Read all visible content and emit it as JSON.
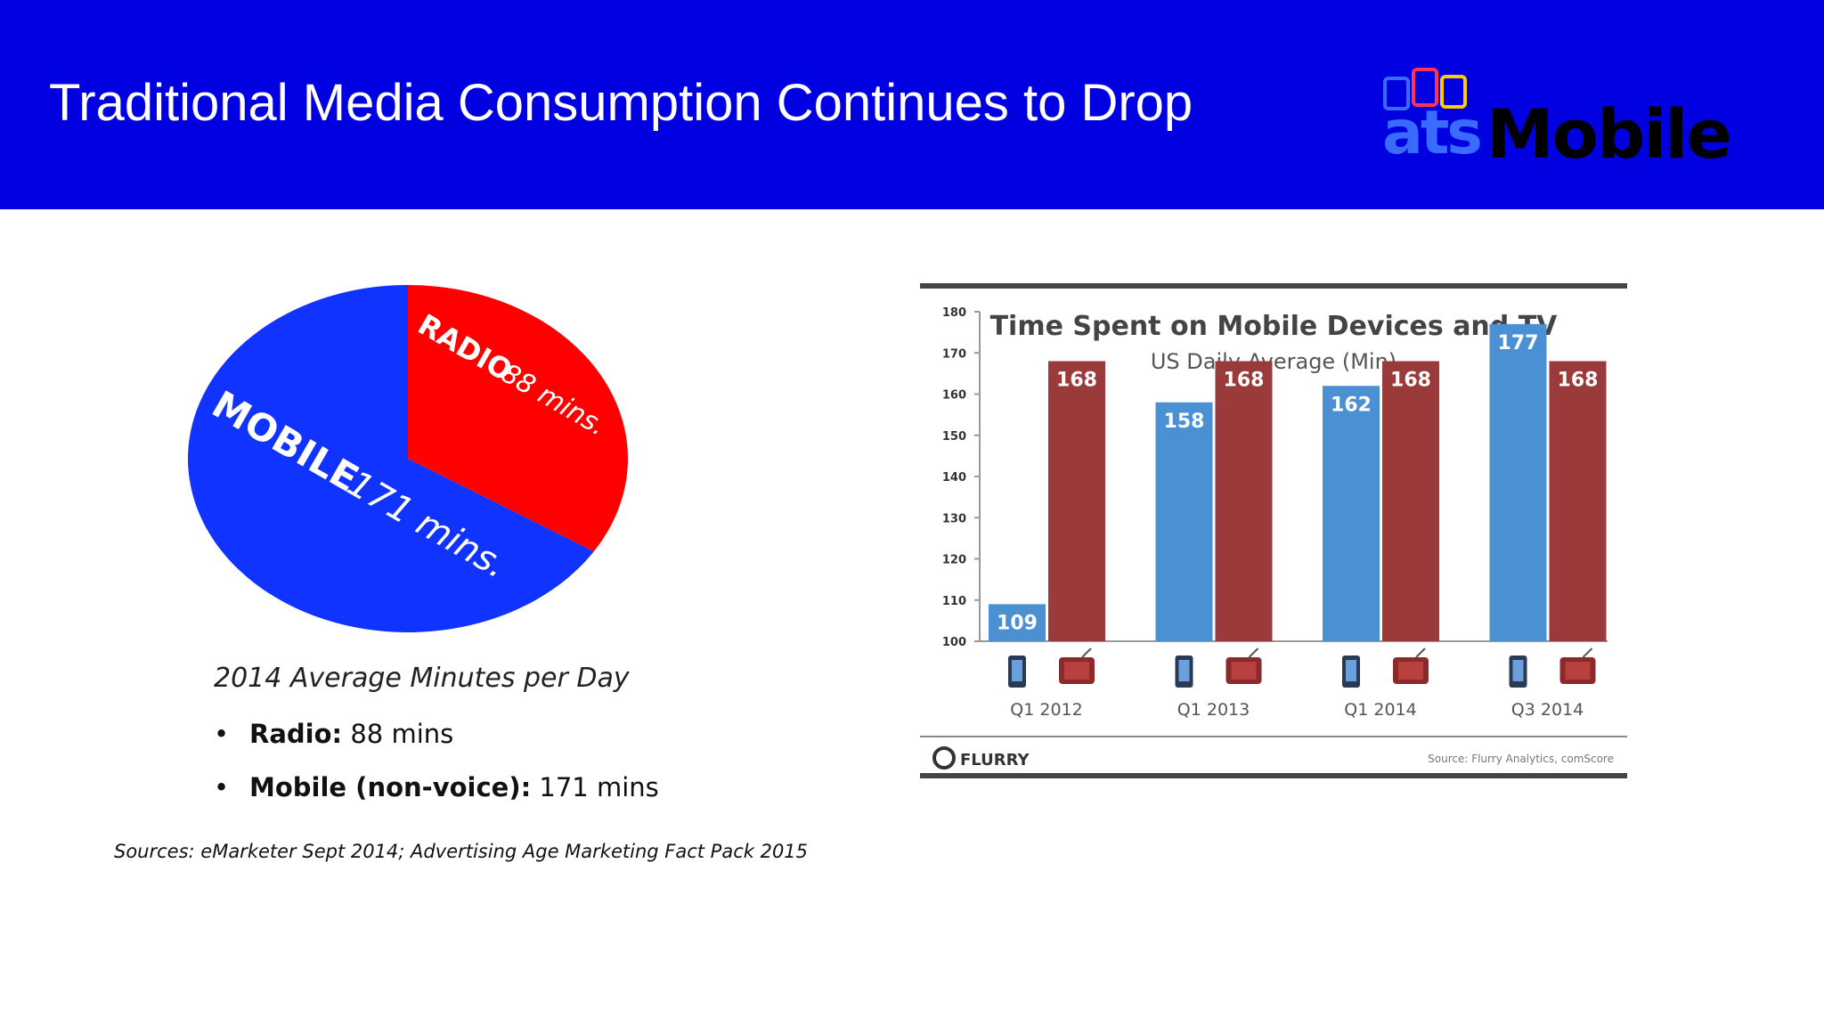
{
  "header": {
    "title": "Traditional Media Consumption Continues to Drop"
  },
  "logo": {
    "part1": "ats",
    "part2": "Mobile"
  },
  "left": {
    "caption": "2014 Average Minutes per Day",
    "bullets": [
      {
        "label": "Radio:",
        "value": "88 mins"
      },
      {
        "label": "Mobile (non-voice):",
        "value": "171 mins"
      }
    ],
    "sources": "Sources: eMarketer Sept 2014; Advertising Age Marketing Fact Pack 2015"
  },
  "colors": {
    "header_bg": "#0000e0",
    "pie_radio": "#ff0000",
    "pie_mobile": "#1133ff",
    "bar_mobile": "#4a90d2",
    "bar_tv": "#9a3a3a"
  },
  "chart_data": [
    {
      "type": "pie",
      "slices": [
        {
          "name": "RADIO",
          "text": "88 mins.",
          "value": 88
        },
        {
          "name": "MOBILE",
          "text": "171 mins.",
          "value": 171
        }
      ]
    },
    {
      "type": "bar",
      "title": "Time Spent on Mobile Devices and TV",
      "subtitle": "US Daily Average (Min)",
      "categories": [
        "Q1 2012",
        "Q1 2013",
        "Q1 2014",
        "Q3 2014"
      ],
      "series": [
        {
          "values": [
            109,
            158,
            162,
            177
          ]
        },
        {
          "values": [
            168,
            168,
            168,
            168
          ]
        }
      ],
      "ylim": [
        100,
        180
      ],
      "yticks": [
        100,
        110,
        120,
        130,
        140,
        150,
        160,
        170,
        180
      ],
      "grid": false,
      "footer_brand": "FLURRY",
      "footer_source": "Source: Flurry Analytics, comScore"
    }
  ]
}
